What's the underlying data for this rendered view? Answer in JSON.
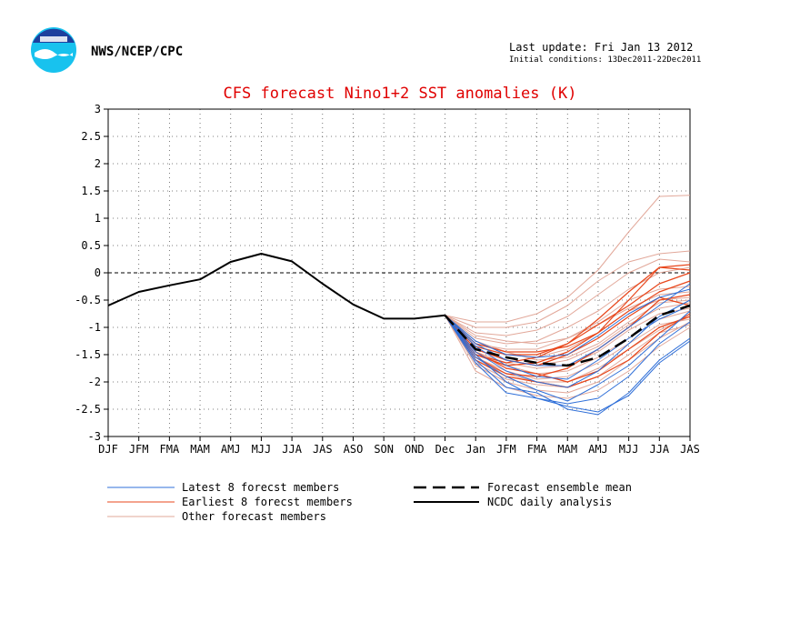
{
  "header": {
    "agency": "NWS/NCEP/CPC",
    "last_update": "Last update: Fri Jan 13 2012",
    "initial_conditions": "Initial conditions: 13Dec2011-22Dec2011"
  },
  "colors": {
    "title": "#e00000",
    "latest": "#2f6fd8",
    "earliest": "#e8471c",
    "other": "#e2a89a",
    "mean": "#000000",
    "analysis": "#000000",
    "logo_dark": "#1d3f9e",
    "logo_light": "#18c2ee"
  },
  "legend": {
    "latest": "Latest 8 forecst members",
    "earliest": "Earliest 8 forecst members",
    "other": "Other forecast members",
    "mean": "Forecast ensemble mean",
    "analysis": "NCDC daily analysis"
  },
  "chart_data": {
    "type": "line",
    "title": "CFS forecast Nino1+2 SST anomalies (K)",
    "xlabel": "",
    "ylabel": "",
    "categories": [
      "DJF",
      "JFM",
      "FMA",
      "MAM",
      "AMJ",
      "MJJ",
      "JJA",
      "JAS",
      "ASO",
      "SON",
      "OND",
      "Dec",
      "Jan",
      "JFM",
      "FMA",
      "MAM",
      "AMJ",
      "MJJ",
      "JJA",
      "JAS"
    ],
    "ylim": [
      -3,
      3
    ],
    "yticks": [
      3,
      2.5,
      2,
      1.5,
      1,
      0.5,
      0,
      -0.5,
      -1,
      -1.5,
      -2,
      -2.5,
      -3
    ],
    "grid": true,
    "zero_line": true,
    "legend_position": "bottom",
    "analysis": {
      "name": "NCDC daily analysis",
      "x_start": 0,
      "values": [
        -0.6,
        -0.35,
        -0.23,
        -0.12,
        0.2,
        0.35,
        0.21,
        -0.2,
        -0.58,
        -0.84,
        -0.84,
        -0.78
      ]
    },
    "ensemble_mean": {
      "name": "Forecast ensemble mean",
      "x_start": 11,
      "values": [
        -0.78,
        -1.4,
        -1.55,
        -1.65,
        -1.7,
        -1.55,
        -1.2,
        -0.78,
        -0.6
      ]
    },
    "members_latest": [
      [
        -0.78,
        -1.6,
        -2.1,
        -2.2,
        -2.5,
        -2.6,
        -2.2,
        -1.6,
        -1.2
      ],
      [
        -0.78,
        -1.5,
        -2.0,
        -2.3,
        -2.4,
        -2.3,
        -1.9,
        -1.3,
        -0.9
      ],
      [
        -0.78,
        -1.45,
        -1.8,
        -2.0,
        -2.1,
        -1.8,
        -1.3,
        -0.8,
        -0.5
      ],
      [
        -0.78,
        -1.3,
        -1.6,
        -1.7,
        -1.7,
        -1.4,
        -1.0,
        -0.6,
        -0.2
      ],
      [
        -0.78,
        -1.55,
        -1.9,
        -2.15,
        -2.35,
        -2.05,
        -1.7,
        -1.2,
        -0.7
      ],
      [
        -0.78,
        -1.35,
        -1.7,
        -1.9,
        -1.95,
        -1.6,
        -1.2,
        -0.85,
        -0.6
      ],
      [
        -0.78,
        -1.65,
        -2.2,
        -2.3,
        -2.45,
        -2.55,
        -2.25,
        -1.65,
        -1.25
      ],
      [
        -0.78,
        -1.25,
        -1.5,
        -1.55,
        -1.5,
        -1.15,
        -0.75,
        -0.45,
        -0.3
      ]
    ],
    "members_earliest": [
      [
        -0.78,
        -1.5,
        -1.7,
        -1.65,
        -1.45,
        -1.1,
        -0.5,
        0.1,
        0.15
      ],
      [
        -0.78,
        -1.35,
        -1.5,
        -1.5,
        -1.3,
        -0.95,
        -0.6,
        -0.2,
        0.0
      ],
      [
        -0.78,
        -1.55,
        -1.85,
        -1.9,
        -1.75,
        -1.4,
        -1.0,
        -0.5,
        -0.4
      ],
      [
        -0.78,
        -1.4,
        -1.6,
        -1.7,
        -1.5,
        -1.2,
        -0.8,
        -0.45,
        -0.6
      ],
      [
        -0.78,
        -1.6,
        -1.9,
        -2.0,
        -2.1,
        -1.9,
        -1.6,
        -1.1,
        -0.75
      ],
      [
        -0.78,
        -1.3,
        -1.45,
        -1.45,
        -1.35,
        -1.1,
        -0.7,
        -0.35,
        -0.15
      ],
      [
        -0.78,
        -1.45,
        -1.75,
        -1.85,
        -2.0,
        -1.8,
        -1.4,
        -1.0,
        -0.8
      ],
      [
        -0.78,
        -1.5,
        -1.65,
        -1.55,
        -1.3,
        -0.85,
        -0.35,
        0.1,
        0.05
      ]
    ],
    "members_other": [
      [
        -0.78,
        -0.9,
        -0.9,
        -0.75,
        -0.45,
        0.05,
        0.75,
        1.4,
        1.42
      ],
      [
        -0.78,
        -1.0,
        -1.0,
        -0.9,
        -0.6,
        -0.15,
        0.2,
        0.35,
        0.4
      ],
      [
        -0.78,
        -1.1,
        -1.15,
        -1.05,
        -0.8,
        -0.4,
        0.0,
        0.25,
        0.2
      ],
      [
        -0.78,
        -1.2,
        -1.3,
        -1.25,
        -1.0,
        -0.7,
        -0.3,
        0.0,
        0.1
      ],
      [
        -0.78,
        -1.3,
        -1.4,
        -1.4,
        -1.2,
        -0.9,
        -0.5,
        -0.3,
        -0.25
      ],
      [
        -0.78,
        -1.35,
        -1.5,
        -1.55,
        -1.4,
        -1.1,
        -0.7,
        -0.5,
        -0.45
      ],
      [
        -0.78,
        -1.4,
        -1.6,
        -1.7,
        -1.6,
        -1.35,
        -0.95,
        -0.65,
        -0.55
      ],
      [
        -0.78,
        -1.5,
        -1.7,
        -1.85,
        -1.8,
        -1.55,
        -1.2,
        -0.85,
        -0.7
      ],
      [
        -0.78,
        -1.6,
        -1.85,
        -2.0,
        -2.0,
        -1.75,
        -1.4,
        -1.05,
        -0.8
      ],
      [
        -0.78,
        -1.7,
        -2.0,
        -2.15,
        -2.2,
        -2.0,
        -1.6,
        -1.2,
        -0.9
      ],
      [
        -0.78,
        -1.8,
        -2.1,
        -2.25,
        -2.3,
        -2.15,
        -1.8,
        -1.35,
        -1.0
      ],
      [
        -0.78,
        -1.15,
        -1.25,
        -1.3,
        -1.2,
        -0.95,
        -0.65,
        -0.4,
        -0.35
      ],
      [
        -0.78,
        -1.45,
        -1.65,
        -1.75,
        -1.7,
        -1.45,
        -1.05,
        -0.75,
        -0.65
      ],
      [
        -0.78,
        -1.25,
        -1.45,
        -1.6,
        -1.55,
        -1.3,
        -0.9,
        -0.55,
        -0.5
      ],
      [
        -0.78,
        -1.55,
        -1.8,
        -1.95,
        -1.9,
        -1.65,
        -1.3,
        -0.95,
        -0.85
      ],
      [
        -0.78,
        -1.65,
        -1.95,
        -2.05,
        -2.1,
        -1.9,
        -1.5,
        -1.1,
        -0.95
      ]
    ]
  }
}
